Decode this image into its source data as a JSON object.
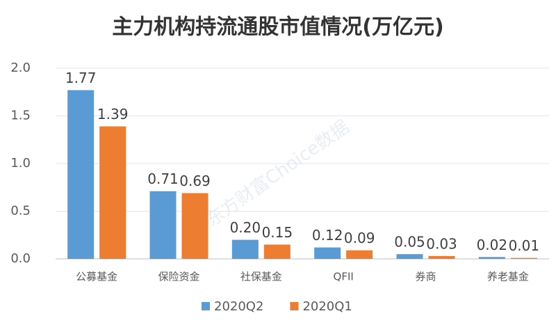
{
  "chart_data": {
    "type": "bar",
    "title": "主力机构持流通股市值情况(万亿元)",
    "watermark": "东方财富Choice数据",
    "categories": [
      "公募基金",
      "保险资金",
      "社保基金",
      "QFII",
      "券商",
      "养老基金"
    ],
    "series": [
      {
        "name": "2020Q2",
        "color": "#5b9bd5",
        "values": [
          1.77,
          0.71,
          0.2,
          0.12,
          0.05,
          0.02
        ],
        "value_labels": [
          "1.77",
          "0.71",
          "0.20",
          "0.12",
          "0.05",
          "0.02"
        ]
      },
      {
        "name": "2020Q1",
        "color": "#ed7d31",
        "values": [
          1.39,
          0.69,
          0.15,
          0.09,
          0.03,
          0.01
        ],
        "value_labels": [
          "1.39",
          "0.69",
          "0.15",
          "0.09",
          "0.03",
          "0.01"
        ]
      }
    ],
    "ylim": [
      0,
      2
    ],
    "yticks": [
      {
        "value": 0,
        "label": "0.0"
      },
      0.5,
      {
        "value": 1,
        "label": "1.0"
      },
      1.5,
      {
        "value": 2,
        "label": "2.0"
      }
    ],
    "grid": true
  }
}
